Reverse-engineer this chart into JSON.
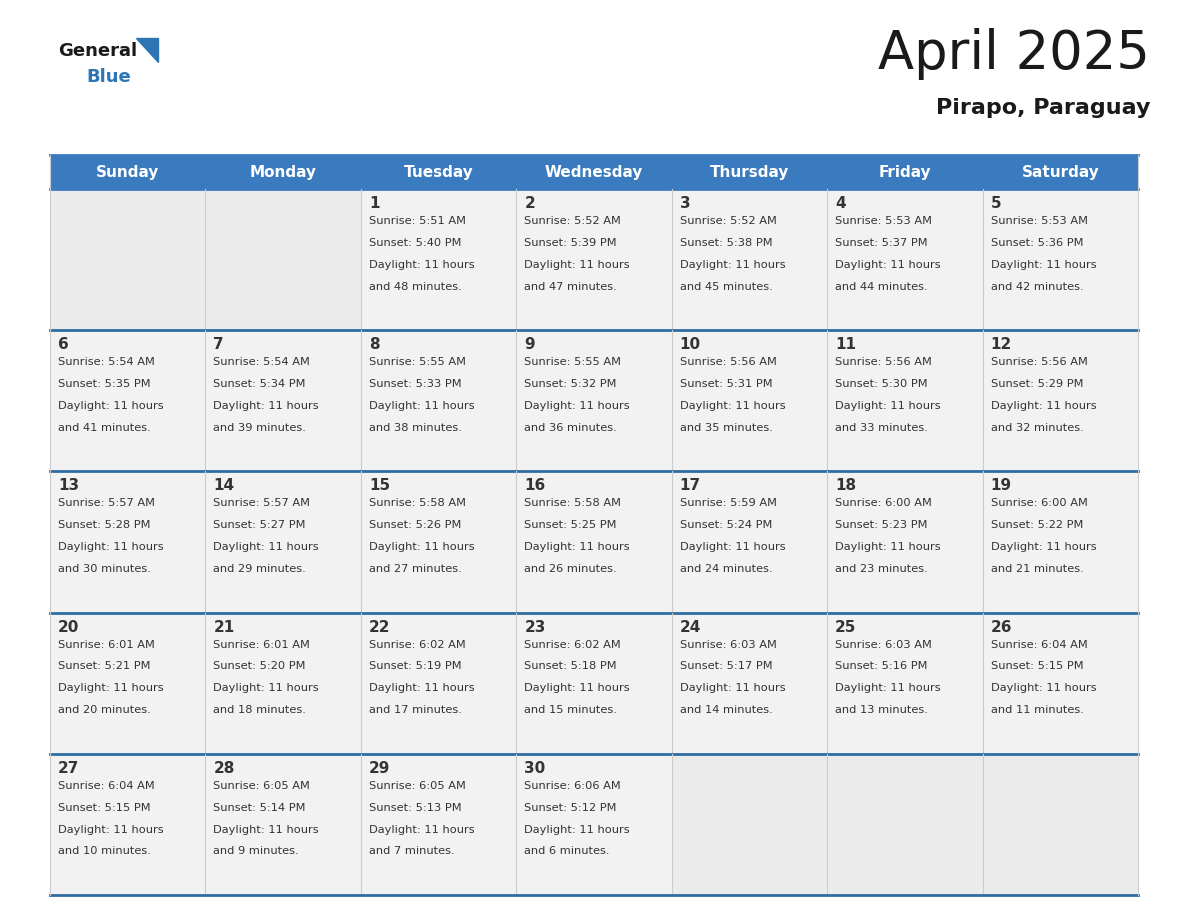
{
  "title": "April 2025",
  "subtitle": "Pirapo, Paraguay",
  "header_bg": "#3a7abf",
  "header_fg": "#ffffff",
  "row_separator_color": "#2e6da4",
  "col_separator_color": "#cccccc",
  "cell_bg_filled": "#f2f2f2",
  "cell_bg_empty": "#ebebeb",
  "text_color": "#333333",
  "days_of_week": [
    "Sunday",
    "Monday",
    "Tuesday",
    "Wednesday",
    "Thursday",
    "Friday",
    "Saturday"
  ],
  "logo_general_color": "#1a1a1a",
  "logo_blue_color": "#2e75b6",
  "logo_triangle_color": "#2e75b6",
  "title_color": "#1a1a1a",
  "subtitle_color": "#1a1a1a",
  "calendar_data": [
    [
      {
        "day": "",
        "info": ""
      },
      {
        "day": "",
        "info": ""
      },
      {
        "day": "1",
        "info": "Sunrise: 5:51 AM\nSunset: 5:40 PM\nDaylight: 11 hours\nand 48 minutes."
      },
      {
        "day": "2",
        "info": "Sunrise: 5:52 AM\nSunset: 5:39 PM\nDaylight: 11 hours\nand 47 minutes."
      },
      {
        "day": "3",
        "info": "Sunrise: 5:52 AM\nSunset: 5:38 PM\nDaylight: 11 hours\nand 45 minutes."
      },
      {
        "day": "4",
        "info": "Sunrise: 5:53 AM\nSunset: 5:37 PM\nDaylight: 11 hours\nand 44 minutes."
      },
      {
        "day": "5",
        "info": "Sunrise: 5:53 AM\nSunset: 5:36 PM\nDaylight: 11 hours\nand 42 minutes."
      }
    ],
    [
      {
        "day": "6",
        "info": "Sunrise: 5:54 AM\nSunset: 5:35 PM\nDaylight: 11 hours\nand 41 minutes."
      },
      {
        "day": "7",
        "info": "Sunrise: 5:54 AM\nSunset: 5:34 PM\nDaylight: 11 hours\nand 39 minutes."
      },
      {
        "day": "8",
        "info": "Sunrise: 5:55 AM\nSunset: 5:33 PM\nDaylight: 11 hours\nand 38 minutes."
      },
      {
        "day": "9",
        "info": "Sunrise: 5:55 AM\nSunset: 5:32 PM\nDaylight: 11 hours\nand 36 minutes."
      },
      {
        "day": "10",
        "info": "Sunrise: 5:56 AM\nSunset: 5:31 PM\nDaylight: 11 hours\nand 35 minutes."
      },
      {
        "day": "11",
        "info": "Sunrise: 5:56 AM\nSunset: 5:30 PM\nDaylight: 11 hours\nand 33 minutes."
      },
      {
        "day": "12",
        "info": "Sunrise: 5:56 AM\nSunset: 5:29 PM\nDaylight: 11 hours\nand 32 minutes."
      }
    ],
    [
      {
        "day": "13",
        "info": "Sunrise: 5:57 AM\nSunset: 5:28 PM\nDaylight: 11 hours\nand 30 minutes."
      },
      {
        "day": "14",
        "info": "Sunrise: 5:57 AM\nSunset: 5:27 PM\nDaylight: 11 hours\nand 29 minutes."
      },
      {
        "day": "15",
        "info": "Sunrise: 5:58 AM\nSunset: 5:26 PM\nDaylight: 11 hours\nand 27 minutes."
      },
      {
        "day": "16",
        "info": "Sunrise: 5:58 AM\nSunset: 5:25 PM\nDaylight: 11 hours\nand 26 minutes."
      },
      {
        "day": "17",
        "info": "Sunrise: 5:59 AM\nSunset: 5:24 PM\nDaylight: 11 hours\nand 24 minutes."
      },
      {
        "day": "18",
        "info": "Sunrise: 6:00 AM\nSunset: 5:23 PM\nDaylight: 11 hours\nand 23 minutes."
      },
      {
        "day": "19",
        "info": "Sunrise: 6:00 AM\nSunset: 5:22 PM\nDaylight: 11 hours\nand 21 minutes."
      }
    ],
    [
      {
        "day": "20",
        "info": "Sunrise: 6:01 AM\nSunset: 5:21 PM\nDaylight: 11 hours\nand 20 minutes."
      },
      {
        "day": "21",
        "info": "Sunrise: 6:01 AM\nSunset: 5:20 PM\nDaylight: 11 hours\nand 18 minutes."
      },
      {
        "day": "22",
        "info": "Sunrise: 6:02 AM\nSunset: 5:19 PM\nDaylight: 11 hours\nand 17 minutes."
      },
      {
        "day": "23",
        "info": "Sunrise: 6:02 AM\nSunset: 5:18 PM\nDaylight: 11 hours\nand 15 minutes."
      },
      {
        "day": "24",
        "info": "Sunrise: 6:03 AM\nSunset: 5:17 PM\nDaylight: 11 hours\nand 14 minutes."
      },
      {
        "day": "25",
        "info": "Sunrise: 6:03 AM\nSunset: 5:16 PM\nDaylight: 11 hours\nand 13 minutes."
      },
      {
        "day": "26",
        "info": "Sunrise: 6:04 AM\nSunset: 5:15 PM\nDaylight: 11 hours\nand 11 minutes."
      }
    ],
    [
      {
        "day": "27",
        "info": "Sunrise: 6:04 AM\nSunset: 5:15 PM\nDaylight: 11 hours\nand 10 minutes."
      },
      {
        "day": "28",
        "info": "Sunrise: 6:05 AM\nSunset: 5:14 PM\nDaylight: 11 hours\nand 9 minutes."
      },
      {
        "day": "29",
        "info": "Sunrise: 6:05 AM\nSunset: 5:13 PM\nDaylight: 11 hours\nand 7 minutes."
      },
      {
        "day": "30",
        "info": "Sunrise: 6:06 AM\nSunset: 5:12 PM\nDaylight: 11 hours\nand 6 minutes."
      },
      {
        "day": "",
        "info": ""
      },
      {
        "day": "",
        "info": ""
      },
      {
        "day": "",
        "info": ""
      }
    ]
  ]
}
